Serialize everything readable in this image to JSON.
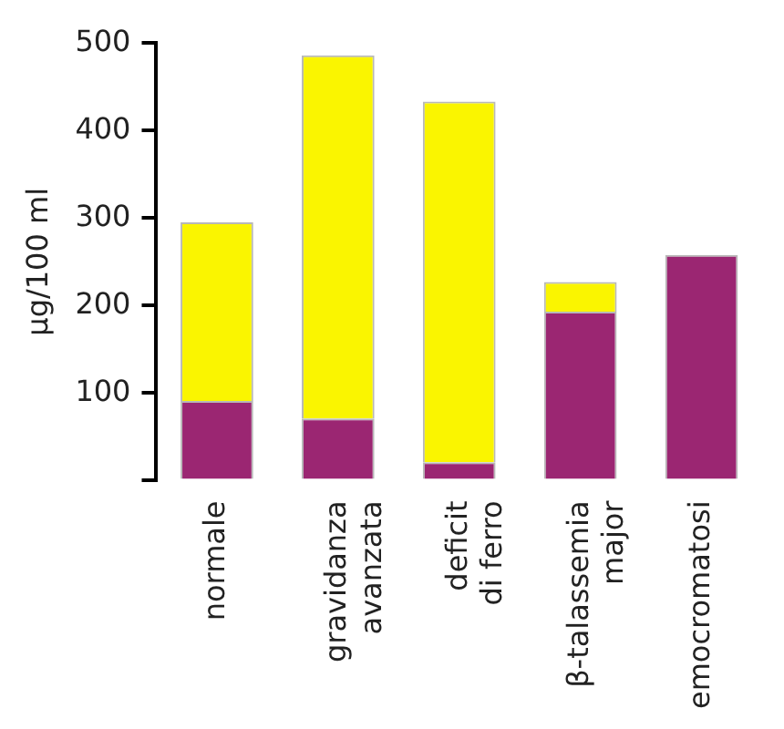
{
  "chart_data": {
    "type": "bar",
    "ylabel": "µg/100 ml",
    "stacked": true,
    "grid": false,
    "legend": false,
    "categories": [
      "normale",
      "gravidanza\navanzata",
      "deficit\ndi ferro",
      "β-talassemia\nmajor",
      "emocromatosi"
    ],
    "series": [
      {
        "color": "#9b2672",
        "values": [
          91,
          71,
          21,
          193,
          258
        ]
      },
      {
        "color": "#faf500",
        "values": [
          204,
          415,
          412,
          34,
          null
        ]
      }
    ],
    "ylim": [
      0,
      500
    ],
    "yticks": [
      {
        "value": 0,
        "label": null
      },
      100,
      200,
      300,
      400,
      500
    ]
  }
}
